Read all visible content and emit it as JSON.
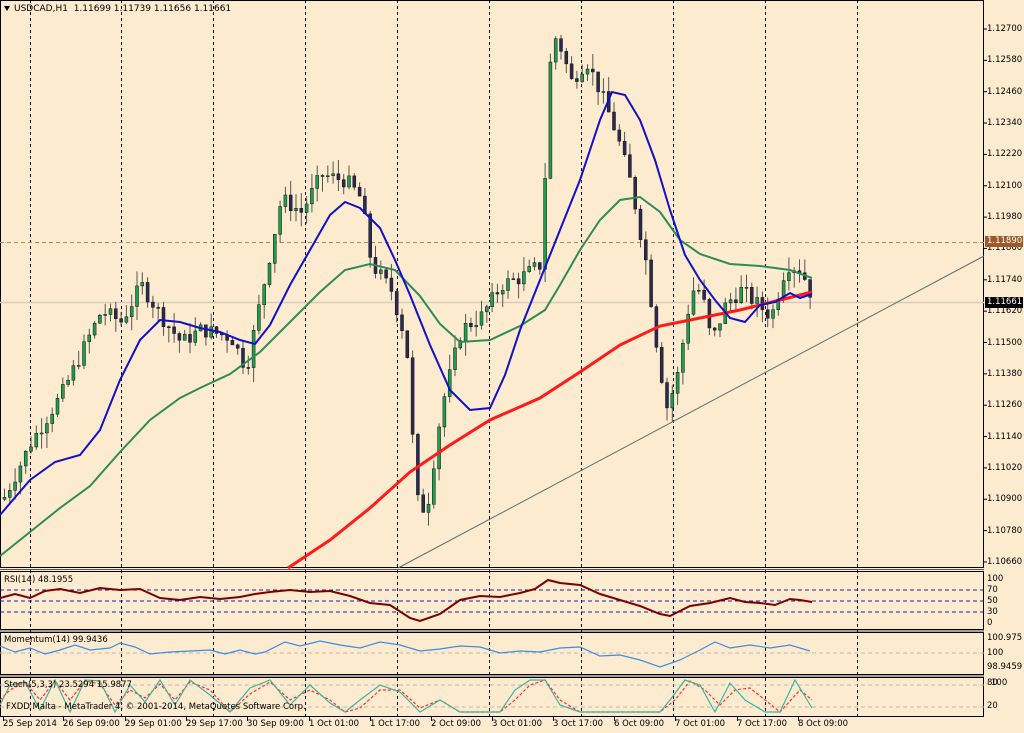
{
  "header": {
    "symbol": "USDCAD,H1",
    "ohlc": "1.11699 1.11739 1.11656 1.11661"
  },
  "colors": {
    "background": "#fdebd0",
    "bull_candle": "#1f9e4f",
    "bear_candle": "#2a2a50",
    "ma_fast": "#1010c8",
    "ma_mid": "#2e8b57",
    "ma_slow": "#ff1a1a",
    "rsi": "#7b0000",
    "momentum": "#3c8ce6",
    "stoch_main": "#3cb4a0",
    "stoch_signal": "#ff3030",
    "ask_tag": "#9a5a2a",
    "bid_tag": "#000000"
  },
  "price_tags": {
    "ask_line": "1.11890",
    "bid": "1.11661"
  },
  "indicators": {
    "rsi_label": "RSI(14) 48.1955",
    "rsi_levels": [
      "100",
      "70",
      "50",
      "30",
      "0"
    ],
    "momentum_label": "Momentum(14) 99.9436",
    "momentum_levels": [
      "100.975",
      "100",
      "98.9459"
    ],
    "stoch_label": "Stoch(5,3,3) 23.5294 15.9877",
    "stoch_levels_top": "80",
    "stoch_levels_top2": "100",
    "stoch_levels_bottom": "20",
    "stoch_levels_bottom2": "0"
  },
  "footer": {
    "copyright": "FXDD Malta - MetaTrader 4, © 2001-2014, MetaQuotes Software Corp."
  },
  "chart_data": {
    "type": "candlestick",
    "title": "USDCAD,H1",
    "subtitle": "O 1.11699 H 1.11739 L 1.11656 C 1.11661",
    "xlabel": "",
    "ylabel": "",
    "ylim": [
      1.1066,
      1.1275
    ],
    "y_ticks": [
      "1.12700",
      "1.12580",
      "1.12460",
      "1.12340",
      "1.12220",
      "1.12100",
      "1.11980",
      "1.11860",
      "1.11740",
      "1.11620",
      "1.11500",
      "1.11380",
      "1.11260",
      "1.11140",
      "1.11020",
      "1.10900",
      "1.10780",
      "1.10660"
    ],
    "x_ticks": [
      "25 Sep 2014",
      "26 Sep 09:00",
      "29 Sep 01:00",
      "29 Sep 17:00",
      "30 Sep 09:00",
      "1 Oct 01:00",
      "1 Oct 17:00",
      "2 Oct 09:00",
      "3 Oct 01:00",
      "3 Oct 17:00",
      "6 Oct 09:00",
      "7 Oct 01:00",
      "7 Oct 17:00",
      "8 Oct 09:00"
    ],
    "grid": true,
    "horizontal_lines": [
      {
        "name": "resistance",
        "value": 1.1189,
        "style": "dashed"
      },
      {
        "name": "current_bid",
        "value": 1.11661,
        "style": "solid"
      }
    ],
    "trendline": {
      "from": [
        "1 Oct 17:00",
        1.1066
      ],
      "to": [
        "right edge",
        1.1186
      ]
    },
    "series": [
      {
        "name": "MA fast (blue)",
        "approx_values": [
          1.1085,
          1.1122,
          1.116,
          1.1148,
          1.1205,
          1.116,
          1.1125,
          1.1187,
          1.1246,
          1.1155,
          1.1163,
          1.117
        ]
      },
      {
        "name": "MA mid (green)",
        "approx_values": [
          1.107,
          1.1103,
          1.1132,
          1.118,
          1.1173,
          1.1154,
          1.1158,
          1.1204,
          1.1196,
          1.1176,
          1.1174
        ]
      },
      {
        "name": "MA slow (red)",
        "approx_values": [
          1.106,
          1.1102,
          1.113,
          1.115,
          1.119,
          1.116,
          1.1166,
          1.1171
        ]
      }
    ],
    "price_path_approx": [
      {
        "t": "25 Sep 2014",
        "close": 1.109
      },
      {
        "t": "26 Sep 09:00",
        "close": 1.1155
      },
      {
        "t": "29 Sep 01:00",
        "close": 1.1155
      },
      {
        "t": "29 Sep 17:00",
        "close": 1.114
      },
      {
        "t": "30 Sep 09:00",
        "close": 1.1205
      },
      {
        "t": "1 Oct 01:00",
        "close": 1.121
      },
      {
        "t": "1 Oct 17:00",
        "close": 1.114
      },
      {
        "t": "2 Oct 09:00",
        "close": 1.115
      },
      {
        "t": "3 Oct 01:00",
        "close": 1.1173
      },
      {
        "t": "3 Oct 17:00",
        "close": 1.1255
      },
      {
        "t": "6 Oct 09:00",
        "close": 1.1165
      },
      {
        "t": "7 Oct 01:00",
        "close": 1.1165
      },
      {
        "t": "7 Oct 17:00",
        "close": 1.1168
      },
      {
        "t": "8 Oct 09:00",
        "close": 1.11661
      }
    ],
    "subpanels": [
      {
        "name": "RSI(14)",
        "last": 48.1955,
        "levels": [
          0,
          30,
          50,
          70,
          100
        ]
      },
      {
        "name": "Momentum(14)",
        "last": 99.9436,
        "range": [
          98.9459,
          100.975
        ]
      },
      {
        "name": "Stoch(5,3,3)",
        "main": 23.5294,
        "signal": 15.9877,
        "levels": [
          20,
          80
        ]
      }
    ]
  }
}
